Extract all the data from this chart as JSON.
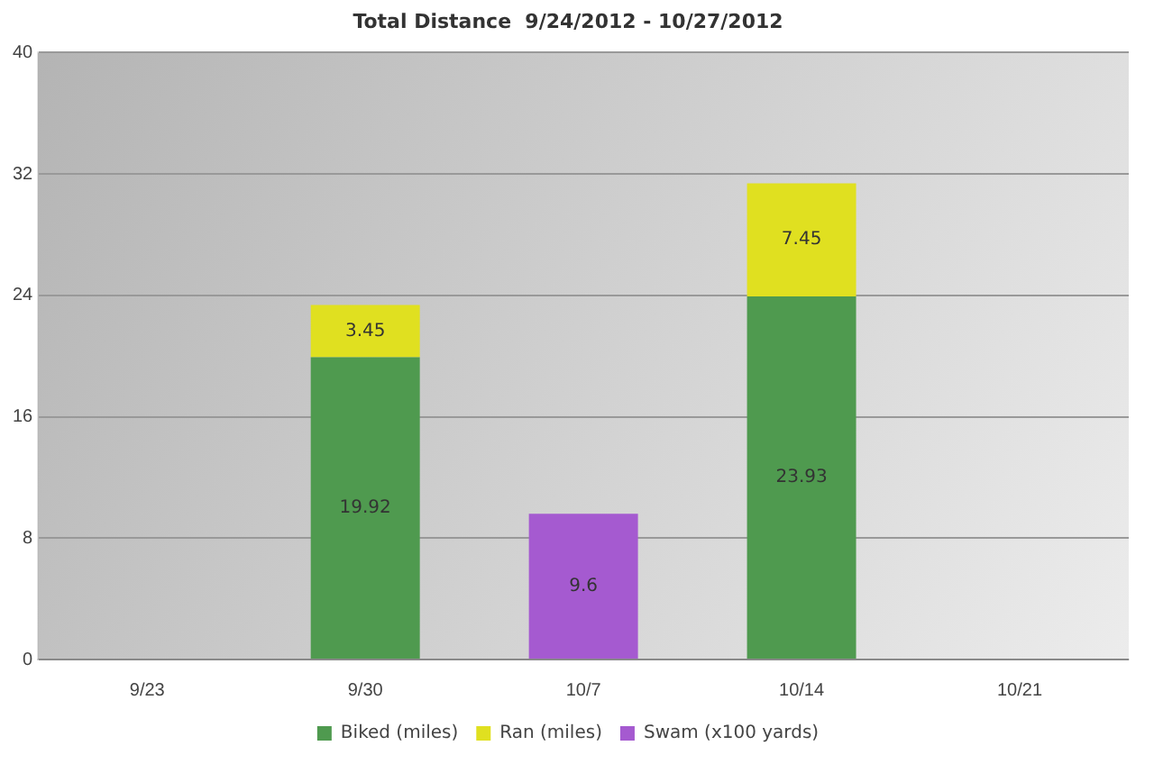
{
  "chart_data": {
    "type": "bar",
    "title": "Total Distance  9/24/2012 - 10/27/2012",
    "categories": [
      "9/23",
      "9/30",
      "10/7",
      "10/14",
      "10/21"
    ],
    "stacked": true,
    "series": [
      {
        "name": "Biked (miles)",
        "color": "#4f9a4f",
        "values": [
          null,
          19.92,
          null,
          23.93,
          null
        ]
      },
      {
        "name": "Ran (miles)",
        "color": "#e0e020",
        "values": [
          null,
          3.45,
          null,
          7.45,
          null
        ]
      },
      {
        "name": "Swam (x100 yards)",
        "color": "#a55ad0",
        "values": [
          null,
          null,
          9.6,
          null,
          null
        ]
      }
    ],
    "ylim": [
      0,
      40
    ],
    "yticks": [
      0,
      8,
      16,
      24,
      32,
      40
    ],
    "grid": "y",
    "legend": "bottom",
    "data_labels": true
  }
}
